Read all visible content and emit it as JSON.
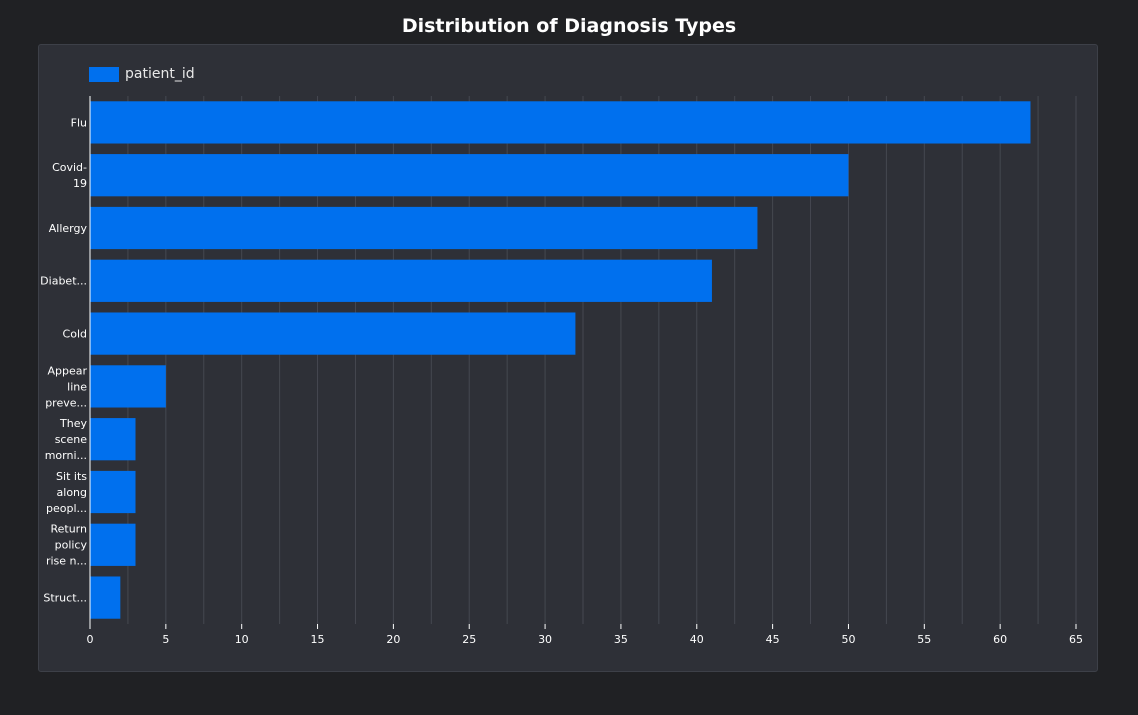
{
  "title": "Distribution of Diagnosis Types",
  "colors": {
    "background": "#202124",
    "panel": "#2e3037",
    "bar": "#0070ee",
    "grid": "#454850",
    "axis": "#ffffff",
    "text": "#ffffff"
  },
  "chart_data": {
    "type": "bar",
    "orientation": "horizontal",
    "title": "Distribution of Diagnosis Types",
    "xlabel": "",
    "ylabel": "",
    "xlim": [
      0,
      65
    ],
    "x_ticks": [
      0,
      5,
      10,
      15,
      20,
      25,
      30,
      35,
      40,
      45,
      50,
      55,
      60,
      65
    ],
    "grid": "vertical",
    "legend_position": "top-left",
    "categories": [
      [
        "Flu"
      ],
      [
        "Covid-",
        "19"
      ],
      [
        "Allergy"
      ],
      [
        "Diabet..."
      ],
      [
        "Cold"
      ],
      [
        "Appear",
        "line",
        "preve..."
      ],
      [
        "They",
        "scene",
        "morni..."
      ],
      [
        "Sit its",
        "along",
        "peopl..."
      ],
      [
        "Return",
        "policy",
        "rise n..."
      ],
      [
        "Struct..."
      ]
    ],
    "series": [
      {
        "name": "patient_id",
        "values": [
          62,
          50,
          44,
          41,
          32,
          5,
          3,
          3,
          3,
          2
        ]
      }
    ]
  }
}
